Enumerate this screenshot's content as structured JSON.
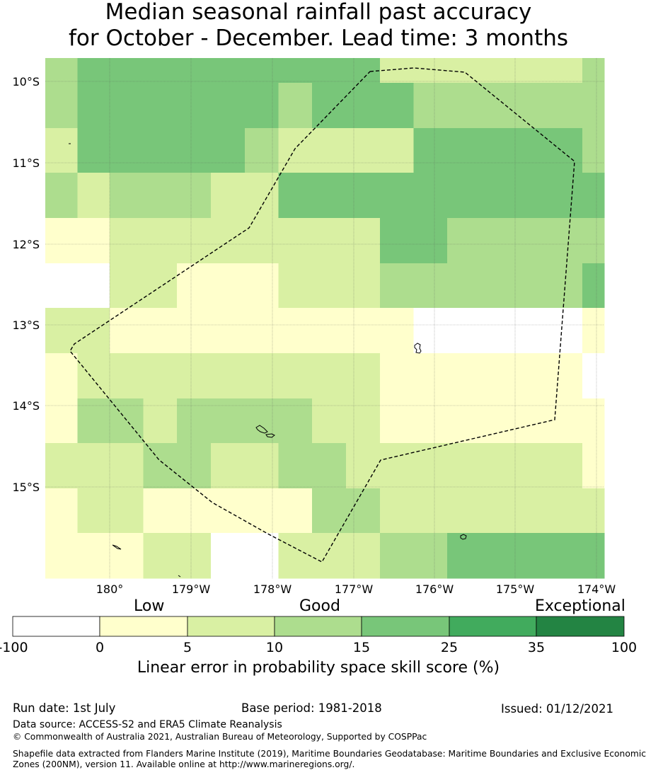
{
  "header": {
    "title_line1": "Median seasonal rainfall past accuracy",
    "title_line2": "for October - December. Lead time: 3 months"
  },
  "map": {
    "lat_labels": [
      "10°S",
      "11°S",
      "12°S",
      "13°S",
      "14°S",
      "15°S"
    ],
    "lon_labels": [
      "180°",
      "179°W",
      "178°W",
      "177°W",
      "176°W",
      "175°W",
      "174°W"
    ],
    "boundary_style": "dashed",
    "grid": true,
    "skill_category_colors": [
      "#ffffff",
      "#ffffcc",
      "#d9f0a3",
      "#addd8e",
      "#78c679",
      "#41ab5d",
      "#238443"
    ],
    "cells": [
      [
        3,
        4,
        4,
        4,
        4,
        4,
        4,
        4,
        4,
        4,
        2,
        2,
        2,
        3
      ],
      [
        3,
        4,
        4,
        4,
        4,
        4,
        4,
        3,
        4,
        4,
        4,
        3,
        3,
        3
      ],
      [
        2,
        4,
        4,
        4,
        4,
        4,
        3,
        2,
        2,
        2,
        2,
        4,
        4,
        3
      ],
      [
        3,
        2,
        3,
        3,
        3,
        2,
        2,
        4,
        4,
        4,
        4,
        4,
        4,
        4
      ],
      [
        1,
        1,
        2,
        2,
        2,
        2,
        2,
        2,
        2,
        2,
        4,
        4,
        3,
        3
      ],
      [
        0,
        0,
        2,
        2,
        1,
        1,
        1,
        2,
        2,
        2,
        3,
        3,
        3,
        4
      ],
      [
        2,
        2,
        1,
        1,
        1,
        1,
        1,
        1,
        1,
        1,
        1,
        0,
        0,
        1
      ],
      [
        1,
        2,
        2,
        2,
        2,
        2,
        2,
        2,
        2,
        2,
        1,
        1,
        1,
        0
      ],
      [
        1,
        3,
        3,
        2,
        3,
        3,
        3,
        3,
        2,
        2,
        1,
        1,
        1,
        1
      ],
      [
        2,
        2,
        2,
        3,
        3,
        2,
        2,
        3,
        3,
        2,
        2,
        2,
        2,
        1
      ],
      [
        1,
        2,
        2,
        1,
        1,
        1,
        1,
        1,
        3,
        3,
        2,
        2,
        2,
        2
      ],
      [
        1,
        1,
        1,
        2,
        2,
        0,
        0,
        2,
        2,
        2,
        3,
        3,
        4,
        4
      ]
    ]
  },
  "colorbar": {
    "category_low": "Low",
    "category_good": "Good",
    "category_exceptional": "Exceptional",
    "ticks": [
      "-100",
      "0",
      "5",
      "10",
      "15",
      "25",
      "35",
      "100"
    ],
    "colors": [
      "#ffffff",
      "#ffffcc",
      "#d9f0a3",
      "#addd8e",
      "#78c679",
      "#41ab5d",
      "#238443"
    ],
    "axis_title": "Linear error in probability space skill score (%)"
  },
  "footer": {
    "run_date": "Run date: 1st July",
    "base_period": "Base period: 1981-2018",
    "issued": "Issued: 01/12/2021",
    "data_source": "Data source: ACCESS-S2 and ERA5 Climate Reanalysis",
    "copyright": "© Commonwealth of Australia 2021, Australian Bureau of Meteorology, Supported by COSPPac",
    "shapefile_line1": "Shapefile data extracted from Flanders Marine Institute (2019), Maritime Boundaries Geodatabase: Maritime Boundaries and Exclusive Economic",
    "shapefile_line2": "Zones (200NM), version 11. Available online at http://www.marineregions.org/."
  }
}
